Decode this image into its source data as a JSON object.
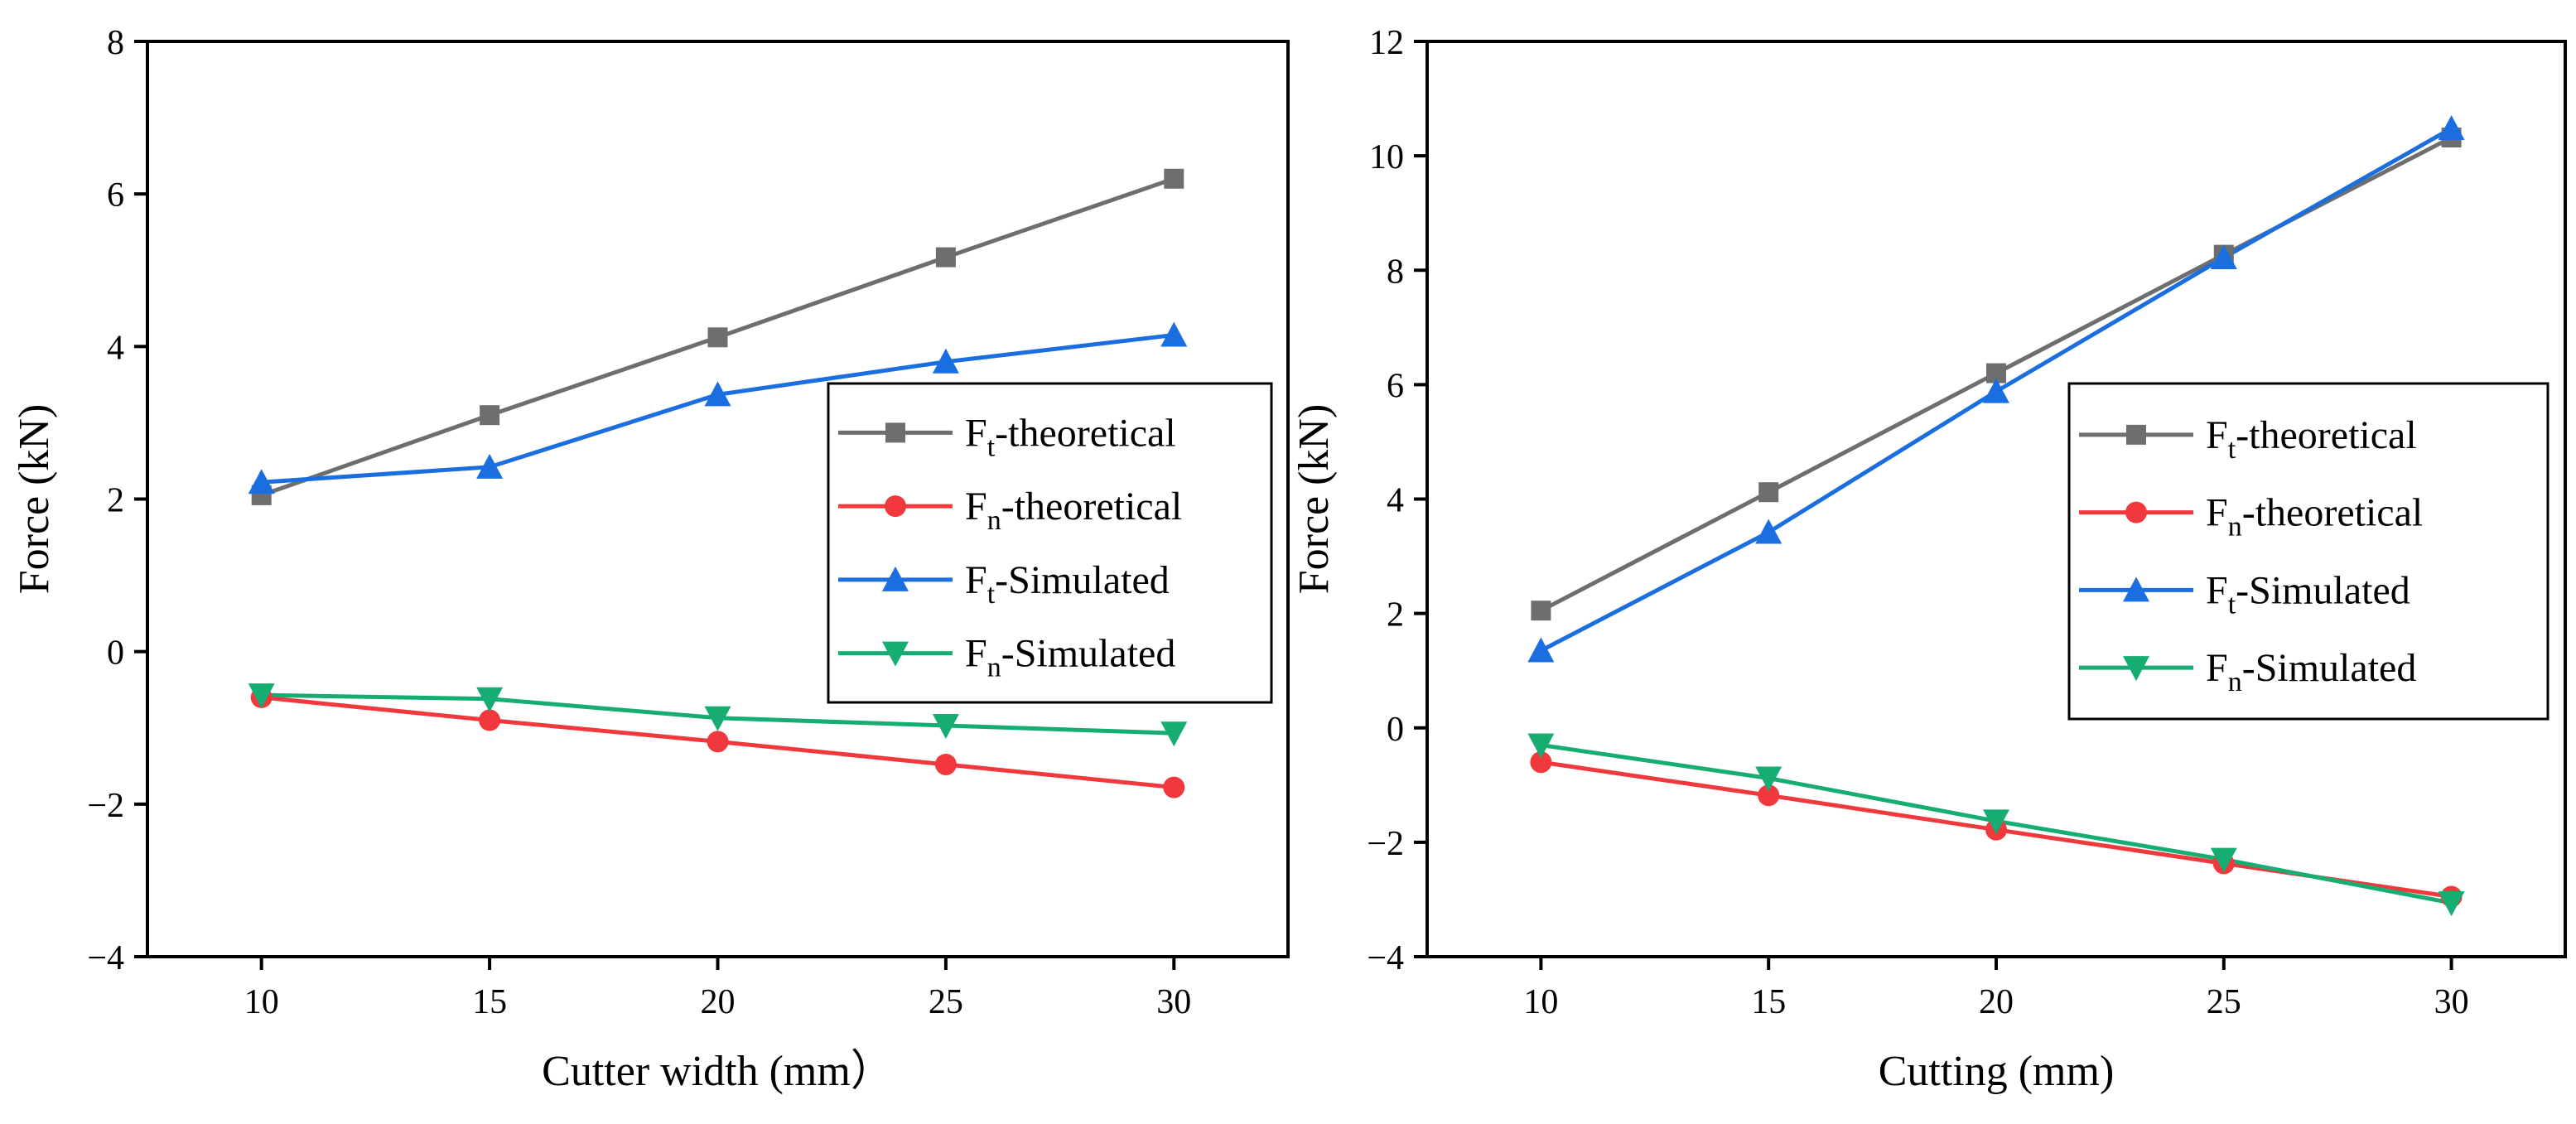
{
  "chart_data": [
    {
      "type": "line",
      "title": "",
      "xlabel": "Cutter width (mm）",
      "ylabel": "Force (kN)",
      "x": [
        10,
        15,
        20,
        25,
        30
      ],
      "xlim": [
        7.5,
        32.5
      ],
      "ylim": [
        -4,
        8
      ],
      "xticks": [
        10,
        15,
        20,
        25,
        30
      ],
      "yticks": [
        -4,
        -2,
        0,
        2,
        4,
        6,
        8
      ],
      "ytick_labels": [
        "−4",
        "−2",
        "0",
        "2",
        "4",
        "6",
        "8"
      ],
      "grid": false,
      "legend_position": "right",
      "series": [
        {
          "name": "Ft-theoretical",
          "label_main": "F",
          "label_sub": "t",
          "label_rest": "-theoretical",
          "color": "#6e6e6e",
          "marker": "square",
          "values": [
            2.05,
            3.1,
            4.12,
            5.17,
            6.2
          ]
        },
        {
          "name": "Fn-theoretical",
          "label_main": "F",
          "label_sub": "n",
          "label_rest": "-theoretical",
          "color": "#f0383d",
          "marker": "circle",
          "values": [
            -0.6,
            -0.9,
            -1.18,
            -1.48,
            -1.78
          ]
        },
        {
          "name": "Ft-Simulated",
          "label_main": "F",
          "label_sub": "t",
          "label_rest": "-Simulated",
          "color": "#1a6ee0",
          "marker": "triangle-up",
          "values": [
            2.22,
            2.42,
            3.37,
            3.8,
            4.15
          ]
        },
        {
          "name": "Fn-Simulated",
          "label_main": "F",
          "label_sub": "n",
          "label_rest": "-Simulated",
          "color": "#16ad72",
          "marker": "triangle-down",
          "values": [
            -0.57,
            -0.62,
            -0.87,
            -0.97,
            -1.07
          ]
        }
      ]
    },
    {
      "type": "line",
      "title": "",
      "xlabel": "Cutting (mm)",
      "ylabel": "Force (kN)",
      "x": [
        10,
        15,
        20,
        25,
        30
      ],
      "xlim": [
        7.5,
        32.5
      ],
      "ylim": [
        -4,
        12
      ],
      "xticks": [
        10,
        15,
        20,
        25,
        30
      ],
      "yticks": [
        -4,
        -2,
        0,
        2,
        4,
        6,
        8,
        10,
        12
      ],
      "ytick_labels": [
        "−4",
        "−2",
        "0",
        "2",
        "4",
        "6",
        "8",
        "10",
        "12"
      ],
      "grid": false,
      "legend_position": "right",
      "series": [
        {
          "name": "Ft-theoretical",
          "label_main": "F",
          "label_sub": "t",
          "label_rest": "-theoretical",
          "color": "#6e6e6e",
          "marker": "square",
          "values": [
            2.05,
            4.12,
            6.2,
            8.27,
            10.32
          ]
        },
        {
          "name": "Fn-theoretical",
          "label_main": "F",
          "label_sub": "n",
          "label_rest": "-theoretical",
          "color": "#f0383d",
          "marker": "circle",
          "values": [
            -0.6,
            -1.18,
            -1.78,
            -2.37,
            -2.95
          ]
        },
        {
          "name": "Ft-Simulated",
          "label_main": "F",
          "label_sub": "t",
          "label_rest": "-Simulated",
          "color": "#1a6ee0",
          "marker": "triangle-up",
          "values": [
            1.35,
            3.42,
            5.88,
            8.22,
            10.48
          ]
        },
        {
          "name": "Fn-Simulated",
          "label_main": "F",
          "label_sub": "n",
          "label_rest": "-Simulated",
          "color": "#16ad72",
          "marker": "triangle-down",
          "values": [
            -0.3,
            -0.88,
            -1.63,
            -2.3,
            -3.06
          ]
        }
      ]
    }
  ]
}
